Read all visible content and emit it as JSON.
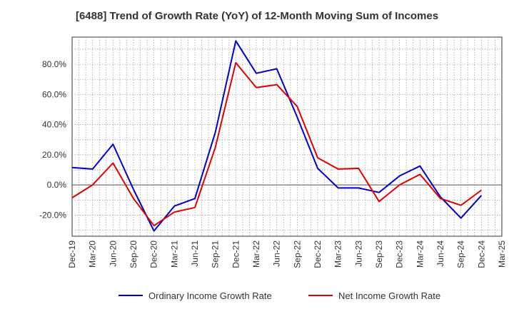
{
  "chart_data": {
    "type": "line",
    "title": "[6488]  Trend of Growth Rate (YoY) of 12-Month Moving Sum of Incomes",
    "xlabel": "",
    "ylabel": "",
    "categories": [
      "Dec-19",
      "Mar-20",
      "Jun-20",
      "Sep-20",
      "Dec-20",
      "Mar-21",
      "Jun-21",
      "Sep-21",
      "Dec-21",
      "Mar-22",
      "Jun-22",
      "Sep-22",
      "Dec-22",
      "Mar-23",
      "Jun-23",
      "Sep-23",
      "Dec-23",
      "Mar-24",
      "Jun-24",
      "Sep-24",
      "Dec-24",
      "Mar-25"
    ],
    "y_ticks": [
      "-20.0%",
      "0.0%",
      "20.0%",
      "40.0%",
      "60.0%",
      "80.0%"
    ],
    "ylim": [
      -34,
      98
    ],
    "grid": true,
    "legend_position": "bottom",
    "series": [
      {
        "name": "Ordinary Income Growth Rate",
        "color": "#0000cc",
        "values": [
          11.5,
          10.5,
          27,
          -3,
          -30.5,
          -14,
          -9,
          35,
          95.5,
          74,
          77,
          45,
          11,
          -2,
          -2,
          -5,
          6,
          12.5,
          -8,
          -22,
          -7,
          null
        ]
      },
      {
        "name": "Net Income Growth Rate",
        "color": "#e00000",
        "values": [
          -8.5,
          0,
          14.5,
          -9,
          -27,
          -18,
          -15,
          25,
          81,
          64.5,
          66.5,
          52,
          18,
          10.5,
          11,
          -11,
          0,
          7,
          -9,
          -13.5,
          -3.5,
          null
        ]
      }
    ]
  }
}
